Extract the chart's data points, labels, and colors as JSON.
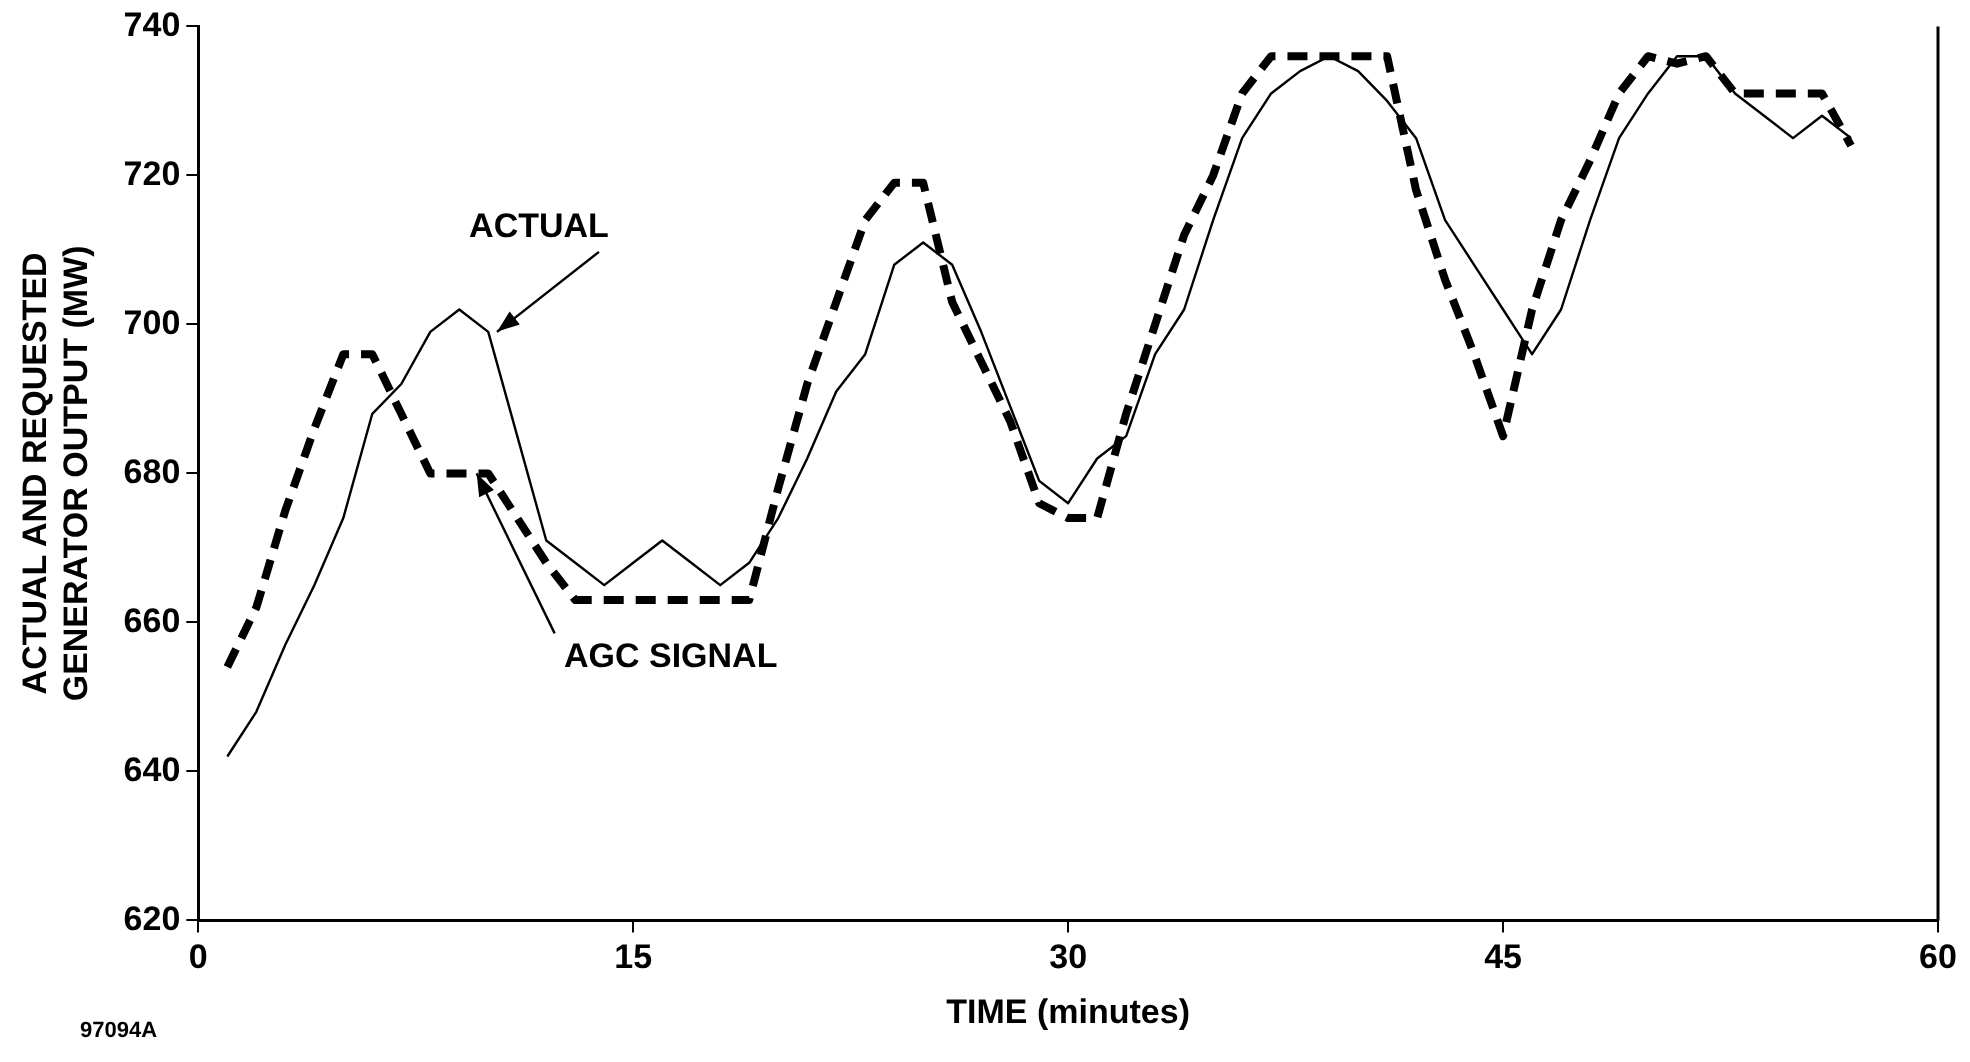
{
  "chart_data": {
    "type": "line",
    "xlabel": "TIME (minutes)",
    "ylabel": "ACTUAL AND REQUESTED\nGENERATOR OUTPUT (MW)",
    "x": [
      1,
      2,
      3,
      4,
      5,
      6,
      7,
      8,
      9,
      10,
      11,
      12,
      13,
      14,
      15,
      16,
      17,
      18,
      19,
      20,
      21,
      22,
      23,
      24,
      25,
      26,
      27,
      28,
      29,
      30,
      31,
      32,
      33,
      34,
      35,
      36,
      37,
      38,
      39,
      40,
      41,
      42,
      43,
      44,
      45,
      46,
      47,
      48,
      49,
      50,
      51,
      52,
      53,
      54,
      55,
      56,
      57
    ],
    "series": [
      {
        "name": "ACTUAL",
        "color": "#000000",
        "line_style": "solid",
        "values": [
          642,
          648,
          657,
          665,
          674,
          688,
          692,
          699,
          702,
          699,
          685,
          671,
          668,
          665,
          668,
          671,
          668,
          665,
          668,
          674,
          682,
          691,
          696,
          708,
          711,
          708,
          699,
          689,
          679,
          676,
          682,
          685,
          696,
          702,
          714,
          725,
          731,
          734,
          736,
          734,
          730,
          725,
          714,
          708,
          702,
          696,
          702,
          714,
          725,
          731,
          736,
          736,
          731,
          728,
          725,
          728,
          725
        ]
      },
      {
        "name": "AGC SIGNAL",
        "color": "#000000",
        "line_style": "dashed",
        "values": [
          654,
          662,
          675,
          686,
          696,
          696,
          688,
          680,
          680,
          680,
          674,
          668,
          663,
          663,
          663,
          663,
          663,
          663,
          663,
          678,
          692,
          703,
          714,
          719,
          719,
          703,
          695,
          687,
          676,
          674,
          674,
          688,
          700,
          712,
          720,
          731,
          736,
          736,
          736,
          736,
          736,
          718,
          706,
          696,
          685,
          702,
          714,
          722,
          731,
          736,
          735,
          736,
          731,
          731,
          731,
          731,
          724
        ]
      }
    ],
    "xlim": [
      0,
      60
    ],
    "xticks": [
      0,
      15,
      30,
      45,
      60
    ],
    "ylim": [
      620,
      740
    ],
    "yticks": [
      620,
      640,
      660,
      680,
      700,
      720,
      740
    ],
    "grid": false,
    "legend": false,
    "marker": "none",
    "annotations": [
      "97094A"
    ]
  }
}
